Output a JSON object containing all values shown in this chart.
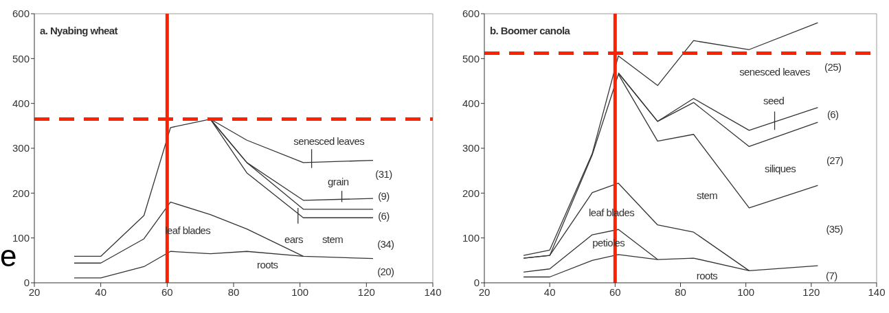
{
  "chart_data": [
    {
      "type": "line",
      "title": "a. Nyabing wheat",
      "xlim": [
        20,
        140
      ],
      "ylim": [
        0,
        600
      ],
      "xticks": [
        20,
        40,
        60,
        80,
        100,
        120,
        140
      ],
      "yticks": [
        0,
        100,
        200,
        300,
        400,
        500,
        600
      ],
      "grid": false,
      "series": [
        {
          "color": "#333333",
          "x": [
            32,
            40,
            53,
            61,
            73,
            84,
            101,
            122
          ],
          "values": [
            59,
            59,
            150,
            346,
            365,
            318,
            268,
            273
          ]
        },
        {
          "color": "#333333",
          "x": [
            73,
            84,
            101,
            122
          ],
          "values": [
            365,
            268,
            184,
            188
          ]
        },
        {
          "color": "#333333",
          "x": [
            73,
            84,
            101,
            122
          ],
          "values": [
            365,
            268,
            164,
            164
          ]
        },
        {
          "color": "#333333",
          "x": [
            73,
            84,
            101,
            122
          ],
          "values": [
            365,
            245,
            145,
            145
          ]
        },
        {
          "color": "#333333",
          "x": [
            32,
            40,
            53,
            61,
            73,
            84,
            101
          ],
          "values": [
            44,
            44,
            98,
            180,
            152,
            120,
            59
          ]
        },
        {
          "color": "#333333",
          "x": [
            32,
            40,
            53,
            61,
            73,
            84,
            101,
            122
          ],
          "values": [
            11,
            11,
            36,
            70,
            65,
            70,
            59,
            54
          ]
        },
        {
          "color": "#333333",
          "x": [
            103.5,
            103.5
          ],
          "values": [
            298,
            256
          ]
        },
        {
          "color": "#333333",
          "x": [
            112.6,
            112.6
          ],
          "values": [
            205,
            180
          ]
        },
        {
          "color": "#333333",
          "x": [
            99.4,
            99.4
          ],
          "values": [
            167,
            132
          ]
        }
      ],
      "ref_lines": [
        {
          "axis": "x",
          "value": 60,
          "color": "#ff2200",
          "line_style": "solid"
        },
        {
          "axis": "y",
          "value": 365,
          "color": "#ff2200",
          "line_style": "dashed"
        }
      ],
      "annotations": [
        "e",
        "senesced leaves",
        "(31)",
        "grain",
        "(9)",
        "(6)",
        "leaf blades",
        "ears",
        "stem",
        "(34)",
        "roots",
        "(20)"
      ]
    },
    {
      "type": "line",
      "title": "b. Boomer canola",
      "xlim": [
        20,
        140
      ],
      "ylim": [
        0,
        600
      ],
      "xticks": [
        20,
        40,
        60,
        80,
        100,
        120,
        140
      ],
      "yticks": [
        0,
        100,
        200,
        300,
        400,
        500,
        600
      ],
      "grid": false,
      "series": [
        {
          "color": "#333333",
          "x": [
            32,
            40,
            53,
            61,
            73,
            84,
            101,
            122
          ],
          "values": [
            61,
            73,
            288,
            506,
            440,
            540,
            520,
            580
          ]
        },
        {
          "color": "#333333",
          "x": [
            61,
            73,
            84,
            101,
            122
          ],
          "values": [
            468,
            360,
            411,
            340,
            391
          ]
        },
        {
          "color": "#333333",
          "x": [
            61,
            73,
            84,
            101,
            122
          ],
          "values": [
            468,
            360,
            402,
            304,
            358
          ]
        },
        {
          "color": "#333333",
          "x": [
            32,
            40,
            53,
            61,
            73,
            84,
            101,
            122
          ],
          "values": [
            55,
            61,
            285,
            465,
            316,
            331,
            167,
            217
          ]
        },
        {
          "color": "#333333",
          "x": [
            32,
            40,
            53,
            61,
            73,
            84,
            101
          ],
          "values": [
            55,
            61,
            201,
            222,
            129,
            113,
            27
          ]
        },
        {
          "color": "#333333",
          "x": [
            32,
            40,
            53,
            61,
            73
          ],
          "values": [
            24,
            31,
            107,
            119,
            52
          ]
        },
        {
          "color": "#333333",
          "x": [
            32,
            40,
            53,
            61,
            73,
            84,
            101,
            122
          ],
          "values": [
            13,
            13,
            50,
            63,
            52,
            55,
            27,
            38
          ]
        },
        {
          "color": "#333333",
          "x": [
            108.8,
            108.8
          ],
          "values": [
            382,
            341
          ]
        }
      ],
      "ref_lines": [
        {
          "axis": "x",
          "value": 60,
          "color": "#ff2200",
          "line_style": "solid"
        },
        {
          "axis": "y",
          "value": 512,
          "color": "#ff2200",
          "line_style": "dashed"
        }
      ],
      "annotations": [
        "senesced leaves",
        "(25)",
        "seed",
        "(6)",
        "(27)",
        "siliques",
        "stem",
        "leaf blades",
        "(35)",
        "petioles",
        "roots",
        "(7)"
      ]
    }
  ]
}
